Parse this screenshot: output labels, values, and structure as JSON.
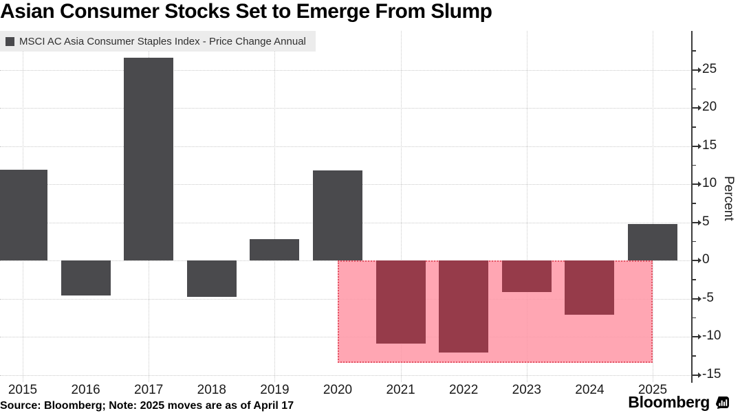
{
  "title": "Asian Consumer Stocks Set to Emerge From Slump",
  "legend": {
    "label": "MSCI AC Asia Consumer Staples Index - Price Change Annual",
    "swatch_color": "#4a4a4d"
  },
  "source_note": "Source: Bloomberg; Note: 2025 moves are as of April 17",
  "branding": {
    "wordmark": "Bloomberg",
    "logo_icon": "bloomberg-terminal-icon"
  },
  "chart_data": {
    "type": "bar",
    "title": "Asian Consumer Stocks Set to Emerge From Slump",
    "categories": [
      "2015",
      "2016",
      "2017",
      "2018",
      "2019",
      "2020",
      "2021",
      "2022",
      "2023",
      "2024",
      "2025"
    ],
    "series": [
      {
        "name": "MSCI AC Asia Consumer Staples Index - Price Change Annual",
        "values": [
          11.9,
          -4.6,
          26.6,
          -4.8,
          2.8,
          11.8,
          -10.9,
          -12.1,
          -4.1,
          -7.1,
          4.8
        ]
      }
    ],
    "bar_colors": [
      "#4a4a4d",
      "#4a4a4d",
      "#4a4a4d",
      "#4a4a4d",
      "#4a4a4d",
      "#4a4a4d",
      "#963b4a",
      "#963b4a",
      "#963b4a",
      "#963b4a",
      "#4a4a4d"
    ],
    "xlabel": "",
    "ylabel": "Percent",
    "ylim": [
      -15.9,
      30.1
    ],
    "yticks_major": [
      25,
      20,
      15,
      10,
      5,
      0,
      -5,
      -10,
      -15
    ],
    "ytick_minor_step": 2.5,
    "grid": true,
    "gridlines_vertical_at": [
      "2015",
      "2017",
      "2019",
      "2021",
      "2023",
      "2025"
    ],
    "legend_position": "top-left",
    "axis_side": "right",
    "highlight_region": {
      "from_category": "2020",
      "to_category": "2025",
      "y_top": 0,
      "y_bottom": -13.4,
      "fill": "#ffa9b8",
      "border_color": "#e25565",
      "border_style": "dotted"
    }
  }
}
